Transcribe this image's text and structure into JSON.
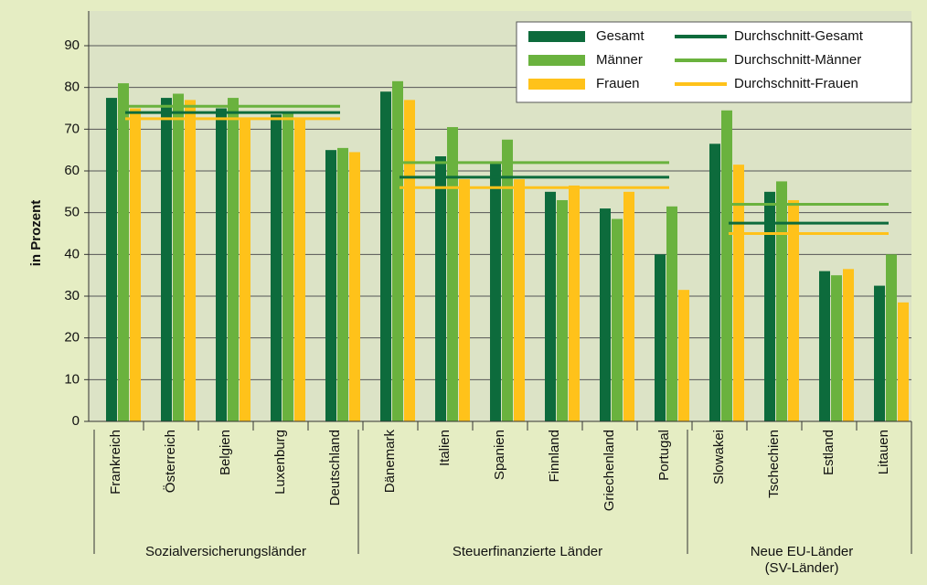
{
  "chart_data": {
    "type": "bar",
    "y_label": "in Prozent",
    "groups": [
      {
        "label": "Sozialversicherungsländer",
        "categories": [
          "Frankreich",
          "Österreich",
          "Belgien",
          "Luxenburg",
          "Deutschland"
        ]
      },
      {
        "label": "Steuerfinanzierte Länder",
        "categories": [
          "Dänemark",
          "Italien",
          "Spanien",
          "Finnland",
          "Griechenland",
          "Portugal"
        ]
      },
      {
        "label": "Neue EU-Länder\n(SV-Länder)",
        "categories": [
          "Slowakei",
          "Tschechien",
          "Estland",
          "Litauen"
        ]
      }
    ],
    "series": [
      {
        "name": "Gesamt",
        "color": "#0d6b3c",
        "values": [
          77.5,
          77.5,
          75,
          73.5,
          65,
          79,
          63.5,
          62,
          55,
          51,
          40,
          66.5,
          55,
          36,
          32.5
        ]
      },
      {
        "name": "Männer",
        "color": "#6ab23e",
        "values": [
          81,
          78.5,
          77.5,
          74,
          65.5,
          81.5,
          70.5,
          67.5,
          53,
          48.5,
          51.5,
          74.5,
          57.5,
          35,
          40
        ]
      },
      {
        "name": "Frauen",
        "color": "#ffc21a",
        "values": [
          75,
          77,
          72.5,
          72.5,
          64.5,
          77,
          58,
          58,
          56.5,
          55,
          31.5,
          61.5,
          53,
          36.5,
          28.5
        ]
      }
    ],
    "averages": [
      {
        "name": "Durchschnitt-Gesamt",
        "color": "#0d6b3c",
        "values": [
          74,
          58.5,
          47.5
        ]
      },
      {
        "name": "Durchschnitt-Männer",
        "color": "#6ab23e",
        "values": [
          75.5,
          62,
          52
        ]
      },
      {
        "name": "Durchschnitt-Frauen",
        "color": "#ffc21a",
        "values": [
          72.5,
          56,
          45
        ]
      }
    ],
    "ylim": [
      0,
      90
    ],
    "yticks": [
      0,
      10,
      20,
      30,
      40,
      50,
      60,
      70,
      80,
      90
    ],
    "grid": true
  }
}
